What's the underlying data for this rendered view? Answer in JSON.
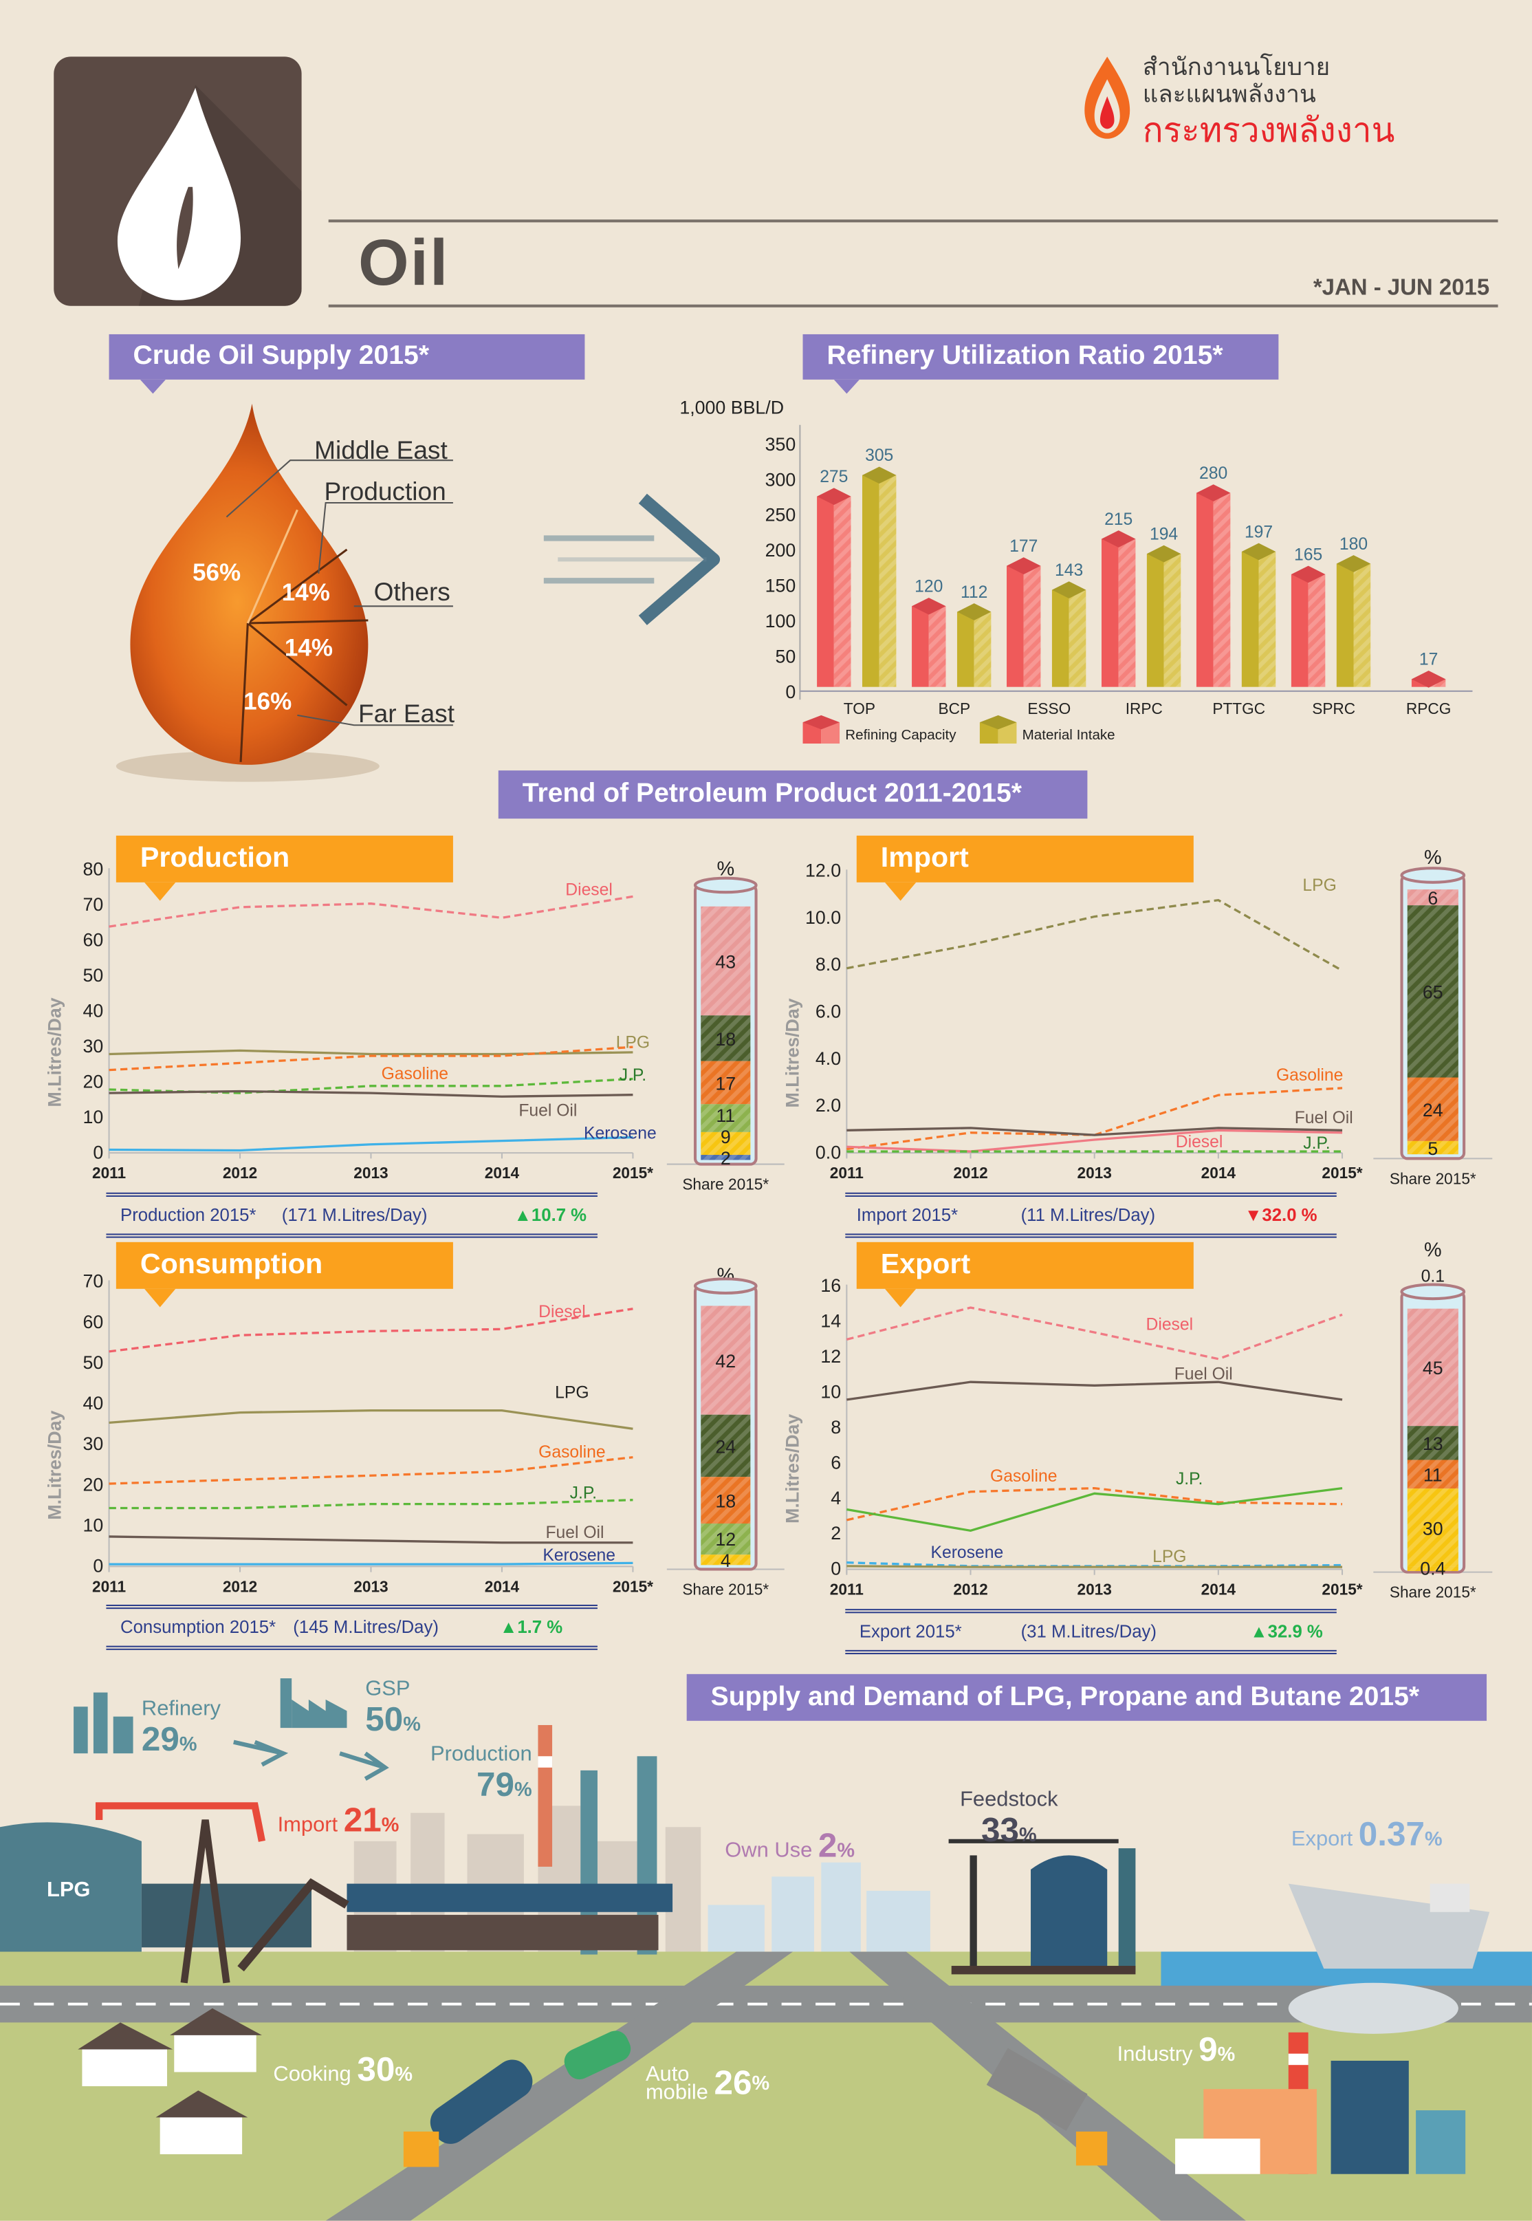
{
  "header": {
    "title": "Oil",
    "period": "*JAN - JUN 2015",
    "logo_text": [
      "สำนักงานนโยบาย",
      "และแผนพลังงาน",
      "กระทรวงพลังงาน"
    ],
    "icon": "oil-drop-icon"
  },
  "crude_supply": {
    "title": "Crude Oil Supply 2015*",
    "slices": [
      {
        "label": "Middle East",
        "value": "56%"
      },
      {
        "label": "Production",
        "value": "14%"
      },
      {
        "label": "Others",
        "value": "14%"
      },
      {
        "label": "Far East",
        "value": "16%"
      }
    ]
  },
  "refinery": {
    "title": "Refinery Utilization Ratio 2015*",
    "chart_data": {
      "type": "bar",
      "ylabel": "1,000 BBL/D",
      "ylim": [
        0,
        350
      ],
      "yticks": [
        "0",
        "50",
        "100",
        "150",
        "200",
        "250",
        "300",
        "350"
      ],
      "categories": [
        "TOP",
        "BCP",
        "ESSO",
        "IRPC",
        "PTTGC",
        "SPRC",
        "RPCG"
      ],
      "series": [
        {
          "name": "Refining Capacity",
          "color": "#ef5a5a",
          "values": [
            275,
            120,
            177,
            215,
            280,
            165,
            17
          ]
        },
        {
          "name": "Material Intake",
          "color": "#cbb53a",
          "values": [
            305,
            112,
            143,
            194,
            197,
            180,
            null
          ]
        }
      ],
      "value_labels": [
        [
          "275",
          "120",
          "177",
          "215",
          "280",
          "165",
          "17"
        ],
        [
          "305",
          "112",
          "143",
          "194",
          "197",
          "180",
          ""
        ]
      ]
    }
  },
  "trend": {
    "title": "Trend of Petroleum Product 2011-2015*",
    "ylabel": "M.Litres/Day",
    "share_label": "Share 2015*",
    "percent_label": "%",
    "charts": [
      {
        "title": "Production",
        "summary": {
          "label": "Production 2015*",
          "amount": "(171 M.Litres/Day)",
          "change": "10.7 %",
          "direction": "up"
        },
        "chart_data": {
          "type": "line",
          "x": [
            "2011",
            "2012",
            "2013",
            "2014",
            "2015*"
          ],
          "ylim": [
            0,
            80
          ],
          "yticks": [
            "0",
            "10",
            "20",
            "30",
            "40",
            "50",
            "60",
            "70",
            "80"
          ],
          "series": [
            {
              "name": "Diesel",
              "color": "#f07a84",
              "dashed": true,
              "values": [
                63.5,
                69,
                70,
                66,
                72
              ]
            },
            {
              "name": "LPG",
              "color": "#9a9255",
              "dashed": false,
              "values": [
                27.5,
                28.5,
                27.5,
                27.5,
                28
              ]
            },
            {
              "name": "Gasoline",
              "color": "#f7772a",
              "dashed": true,
              "values": [
                23,
                25,
                27,
                27,
                29.5
              ]
            },
            {
              "name": "J.P.",
              "color": "#5cb83a",
              "dashed": true,
              "values": [
                17.5,
                16.5,
                18.5,
                18.5,
                20.5
              ]
            },
            {
              "name": "Fuel Oil",
              "color": "#6b5a52",
              "dashed": false,
              "values": [
                16.5,
                17,
                16.5,
                15.5,
                16
              ]
            },
            {
              "name": "Kerosene",
              "color": "#3fb1e8",
              "dashed": false,
              "values": [
                0.5,
                0.3,
                2,
                3,
                4
              ]
            }
          ],
          "share": [
            "43",
            "18",
            "17",
            "11",
            "9",
            "2"
          ],
          "share_values": [
            43,
            18,
            17,
            11,
            9,
            2
          ]
        }
      },
      {
        "title": "Import",
        "summary": {
          "label": "Import 2015*",
          "amount": "(11 M.Litres/Day)",
          "change": "32.0 %",
          "direction": "down"
        },
        "chart_data": {
          "type": "line",
          "x": [
            "2011",
            "2012",
            "2013",
            "2014",
            "2015*"
          ],
          "ylim": [
            0,
            12
          ],
          "yticks": [
            "0.0",
            "2.0",
            "4.0",
            "6.0",
            "8.0",
            "10.0",
            "12.0"
          ],
          "series": [
            {
              "name": "LPG",
              "color": "#8f8a4c",
              "dashed": true,
              "values": [
                7.8,
                8.8,
                10,
                10.7,
                7.7
              ]
            },
            {
              "name": "Gasoline",
              "color": "#f7772a",
              "dashed": true,
              "values": [
                0.1,
                0.8,
                0.7,
                2.4,
                2.7
              ]
            },
            {
              "name": "Fuel Oil",
              "color": "#6b5a52",
              "dashed": false,
              "values": [
                0.9,
                1,
                0.7,
                1,
                0.9
              ]
            },
            {
              "name": "Diesel",
              "color": "#f07a84",
              "dashed": false,
              "values": [
                0.2,
                0,
                0.5,
                0.9,
                0.8
              ]
            },
            {
              "name": "J.P.",
              "color": "#5cb83a",
              "dashed": true,
              "values": [
                0,
                0,
                0,
                0,
                0
              ]
            }
          ],
          "share": [
            "6",
            "65",
            "24",
            "5"
          ],
          "share_values": [
            6,
            65,
            24,
            5
          ]
        }
      },
      {
        "title": "Consumption",
        "summary": {
          "label": "Consumption 2015*",
          "amount": "(145 M.Litres/Day)",
          "change": "1.7 %",
          "direction": "up"
        },
        "chart_data": {
          "type": "line",
          "x": [
            "2011",
            "2012",
            "2013",
            "2014",
            "2015*"
          ],
          "ylim": [
            0,
            70
          ],
          "yticks": [
            "0",
            "10",
            "20",
            "30",
            "40",
            "50",
            "60",
            "70"
          ],
          "series": [
            {
              "name": "Diesel",
              "color": "#f0606a",
              "dashed": true,
              "values": [
                52.5,
                56.5,
                57.5,
                58,
                63
              ]
            },
            {
              "name": "LPG",
              "color": "#9a9255",
              "dashed": false,
              "values": [
                35,
                37.5,
                38,
                38,
                33.5
              ]
            },
            {
              "name": "Gasoline",
              "color": "#f7772a",
              "dashed": true,
              "values": [
                20,
                21,
                22,
                23,
                26.5
              ]
            },
            {
              "name": "J.P.",
              "color": "#5cb83a",
              "dashed": true,
              "values": [
                14,
                14,
                15,
                15,
                16
              ]
            },
            {
              "name": "Fuel Oil",
              "color": "#6b5a52",
              "dashed": false,
              "values": [
                7,
                6.5,
                6,
                5.5,
                5.5
              ]
            },
            {
              "name": "Kerosene",
              "color": "#3fb1e8",
              "dashed": false,
              "values": [
                0.2,
                0.2,
                0.2,
                0.2,
                0.5
              ]
            }
          ],
          "share": [
            "42",
            "24",
            "18",
            "12",
            "4"
          ],
          "share_values": [
            42,
            24,
            18,
            12,
            4
          ]
        }
      },
      {
        "title": "Export",
        "summary": {
          "label": "Export 2015*",
          "amount": "(31 M.Litres/Day)",
          "change": "32.9 %",
          "direction": "up"
        },
        "chart_data": {
          "type": "line",
          "x": [
            "2011",
            "2012",
            "2013",
            "2014",
            "2015*"
          ],
          "ylim": [
            0,
            16
          ],
          "yticks": [
            "0",
            "2",
            "4",
            "6",
            "8",
            "10",
            "12",
            "14",
            "16"
          ],
          "series": [
            {
              "name": "Diesel",
              "color": "#f07a84",
              "dashed": true,
              "values": [
                12.9,
                14.7,
                13.3,
                11.8,
                14.3
              ]
            },
            {
              "name": "Fuel Oil",
              "color": "#6b5a52",
              "dashed": false,
              "values": [
                9.5,
                10.5,
                10.3,
                10.5,
                9.5
              ]
            },
            {
              "name": "Gasoline",
              "color": "#f7772a",
              "dashed": true,
              "values": [
                2.7,
                4.3,
                4.5,
                3.7,
                3.6
              ]
            },
            {
              "name": "J.P.",
              "color": "#5cb83a",
              "dashed": false,
              "values": [
                3.3,
                2.1,
                4.2,
                3.6,
                4.5
              ]
            },
            {
              "name": "Kerosene",
              "color": "#3fb1e8",
              "dashed": true,
              "values": [
                0.3,
                0.1,
                0.1,
                0.1,
                0.15
              ]
            },
            {
              "name": "LPG",
              "color": "#9a9255",
              "dashed": false,
              "values": [
                0.1,
                0.05,
                0.05,
                0.05,
                0.05
              ]
            }
          ],
          "share_top": "0.1",
          "share": [
            "45",
            "13",
            "11",
            "30",
            "0.4"
          ],
          "share_values": [
            45,
            13,
            11,
            30,
            0.4
          ]
        }
      }
    ],
    "share_colors": {
      "Production": [
        "#e89a98",
        "#4b5e2c",
        "#ea7424",
        "#8db24e",
        "#f7c511",
        "#4c6fb0"
      ],
      "Import": [
        "#e89a98",
        "#4b5e2c",
        "#ea7424",
        "#f7c511"
      ],
      "Consumption": [
        "#e89a98",
        "#4b5e2c",
        "#ea7424",
        "#8db24e",
        "#f7c511"
      ],
      "Export": [
        "#e89a98",
        "#4b5e2c",
        "#ea7424",
        "#f7c511",
        "#f7c511"
      ]
    }
  },
  "lpg": {
    "title": "Supply and Demand of LPG, Propane and Butane 2015*",
    "tank_label": "LPG",
    "refinery": {
      "label": "Refinery",
      "value": "29",
      "unit": "%"
    },
    "gsp": {
      "label": "GSP",
      "value": "50",
      "unit": "%"
    },
    "production": {
      "label": "Production",
      "value": "79",
      "unit": "%"
    },
    "import": {
      "label": "Import",
      "value": "21",
      "unit": "%"
    },
    "own_use": {
      "label": "Own Use",
      "value": "2",
      "unit": "%"
    },
    "feedstock": {
      "label": "Feedstock",
      "value": "33",
      "unit": "%"
    },
    "export": {
      "label": "Export",
      "value": "0.37",
      "unit": "%"
    },
    "cooking": {
      "label": "Cooking",
      "value": "30",
      "unit": "%"
    },
    "auto": {
      "label1": "Auto",
      "label2": "mobile",
      "value": "26",
      "unit": "%"
    },
    "industry": {
      "label": "Industry",
      "value": "9",
      "unit": "%"
    }
  }
}
